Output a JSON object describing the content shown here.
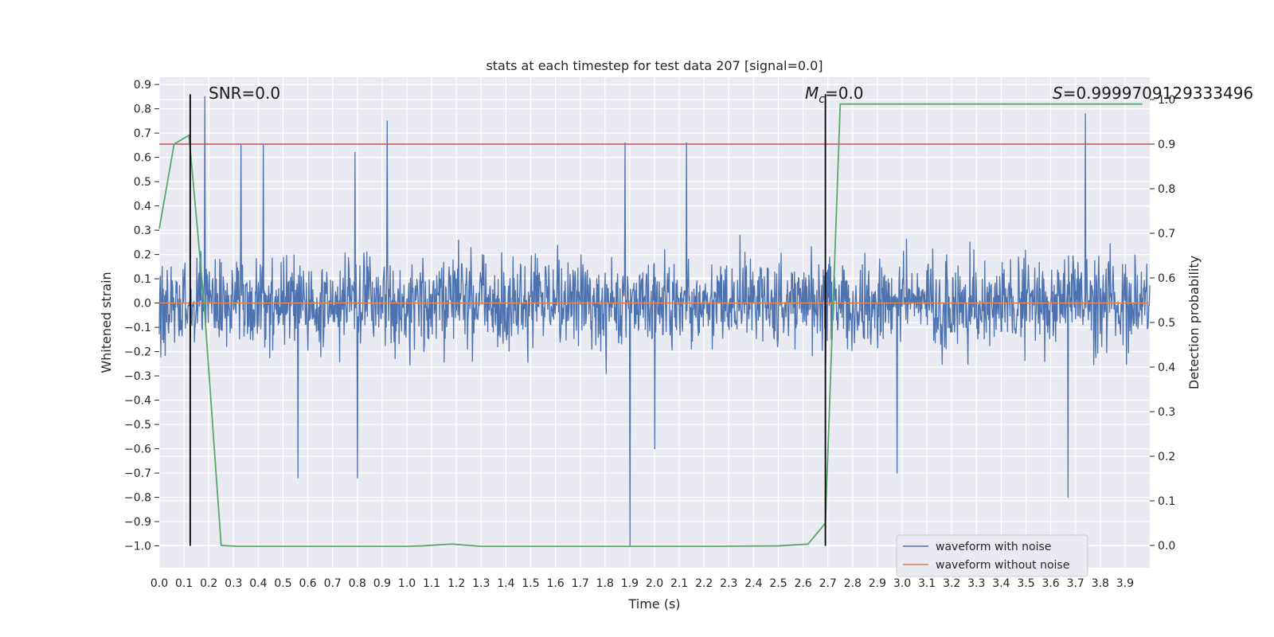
{
  "chart_data": {
    "type": "line",
    "title": "stats at each timestep for test data 207 [signal=0.0]",
    "xlabel": "Time (s)",
    "ylabel": "Whitened strain",
    "y2label": "Detection probability",
    "xlim": [
      0.0,
      4.0
    ],
    "ylim": [
      -1.09,
      0.93
    ],
    "y2lim": [
      -0.05,
      1.05
    ],
    "x_ticks": [
      0.0,
      0.1,
      0.2,
      0.3,
      0.4,
      0.5,
      0.6,
      0.7,
      0.8,
      0.9,
      1.0,
      1.1,
      1.2,
      1.3,
      1.4,
      1.5,
      1.6,
      1.7,
      1.8,
      1.9,
      2.0,
      2.1,
      2.2,
      2.3,
      2.4,
      2.5,
      2.6,
      2.7,
      2.8,
      2.9,
      3.0,
      3.1,
      3.2,
      3.3,
      3.4,
      3.5,
      3.6,
      3.7,
      3.8,
      3.9
    ],
    "x_tick_labels": [
      "0.0",
      "0.1",
      "0.2",
      "0.3",
      "0.4",
      "0.5",
      "0.6",
      "0.7",
      "0.8",
      "0.9",
      "1.0",
      "1.1",
      "1.2",
      "1.3",
      "1.4",
      "1.5",
      "1.6",
      "1.7",
      "1.8",
      "1.9",
      "2.0",
      "2.1",
      "2.2",
      "2.3",
      "2.4",
      "2.5",
      "2.6",
      "2.7",
      "2.8",
      "2.9",
      "3.0",
      "3.1",
      "3.2",
      "3.3",
      "3.4",
      "3.5",
      "3.6",
      "3.7",
      "3.8",
      "3.9"
    ],
    "y_ticks": [
      0.9,
      0.8,
      0.7,
      0.6,
      0.5,
      0.4,
      0.3,
      0.2,
      0.1,
      0.0,
      -0.1,
      -0.2,
      -0.3,
      -0.4,
      -0.5,
      -0.6,
      -0.7,
      -0.8,
      -0.9,
      -1.0
    ],
    "y_tick_labels": [
      "0.9",
      "0.8",
      "0.7",
      "0.6",
      "0.5",
      "0.4",
      "0.3",
      "0.2",
      "0.1",
      "0.0",
      "−0.1",
      "−0.2",
      "−0.3",
      "−0.4",
      "−0.5",
      "−0.6",
      "−0.7",
      "−0.8",
      "−0.9",
      "−1.0"
    ],
    "y2_ticks": [
      1.0,
      0.9,
      0.8,
      0.7,
      0.6,
      0.5,
      0.4,
      0.3,
      0.2,
      0.1,
      0.0
    ],
    "y2_tick_labels": [
      "1.0",
      "0.9",
      "0.8",
      "0.7",
      "0.6",
      "0.5",
      "0.4",
      "0.3",
      "0.2",
      "0.1",
      "0.0"
    ],
    "grid": true,
    "legend_position": "lower-right",
    "series": [
      {
        "name": "waveform with noise",
        "axis": "left",
        "color": "#4c72b0",
        "kind": "noise",
        "n_points": 2000,
        "amplitude_range": [
          -0.4,
          0.4
        ],
        "peaks": [
          {
            "x": 0.185,
            "y": 0.85
          },
          {
            "x": 0.92,
            "y": 0.75
          },
          {
            "x": 3.74,
            "y": 0.78
          },
          {
            "x": 0.33,
            "y": 0.65
          },
          {
            "x": 0.42,
            "y": 0.65
          },
          {
            "x": 1.88,
            "y": 0.66
          },
          {
            "x": 2.13,
            "y": 0.66
          },
          {
            "x": 0.79,
            "y": 0.62
          },
          {
            "x": 1.9,
            "y": -1.0
          },
          {
            "x": 0.8,
            "y": -0.72
          },
          {
            "x": 0.56,
            "y": -0.72
          },
          {
            "x": 3.67,
            "y": -0.8
          },
          {
            "x": 2.0,
            "y": -0.6
          },
          {
            "x": 2.98,
            "y": -0.7
          }
        ]
      },
      {
        "name": "waveform without noise",
        "axis": "left",
        "color": "#dd8452",
        "x": [
          0.0,
          4.0
        ],
        "y": [
          0.0,
          0.0
        ]
      },
      {
        "axis": "right",
        "color": "#55a868",
        "x": [
          0.0,
          0.06,
          0.12,
          0.18,
          0.25,
          0.31,
          0.5,
          0.75,
          1.0,
          1.06,
          1.18,
          1.3,
          1.5,
          1.75,
          2.0,
          2.25,
          2.5,
          2.62,
          2.69,
          2.75,
          3.0,
          3.25,
          3.5,
          3.75,
          3.97
        ],
        "y": [
          0.71,
          0.9,
          0.92,
          0.55,
          0.0,
          -0.002,
          -0.002,
          -0.002,
          -0.002,
          -0.001,
          0.003,
          -0.002,
          -0.002,
          -0.002,
          -0.002,
          -0.002,
          -0.001,
          0.003,
          0.05,
          0.99,
          0.99,
          0.99,
          0.99,
          0.99,
          0.99
        ]
      }
    ],
    "reference_lines": {
      "threshold": {
        "axis": "right",
        "y": 0.9,
        "color": "#c44e52"
      },
      "markers": [
        {
          "x": 0.125,
          "y_from": -1.0,
          "y_to": 0.86,
          "color": "#000000"
        },
        {
          "x": 2.69,
          "y_from": -1.0,
          "y_to": 0.86,
          "color": "#000000"
        }
      ]
    },
    "annotations": {
      "snr": "SNR=0.0",
      "mc_symbol": "M",
      "mc_sub": "c",
      "mc_value": "=0.0",
      "s_symbol": "S",
      "s_value": "=0.9999709129333496"
    }
  }
}
